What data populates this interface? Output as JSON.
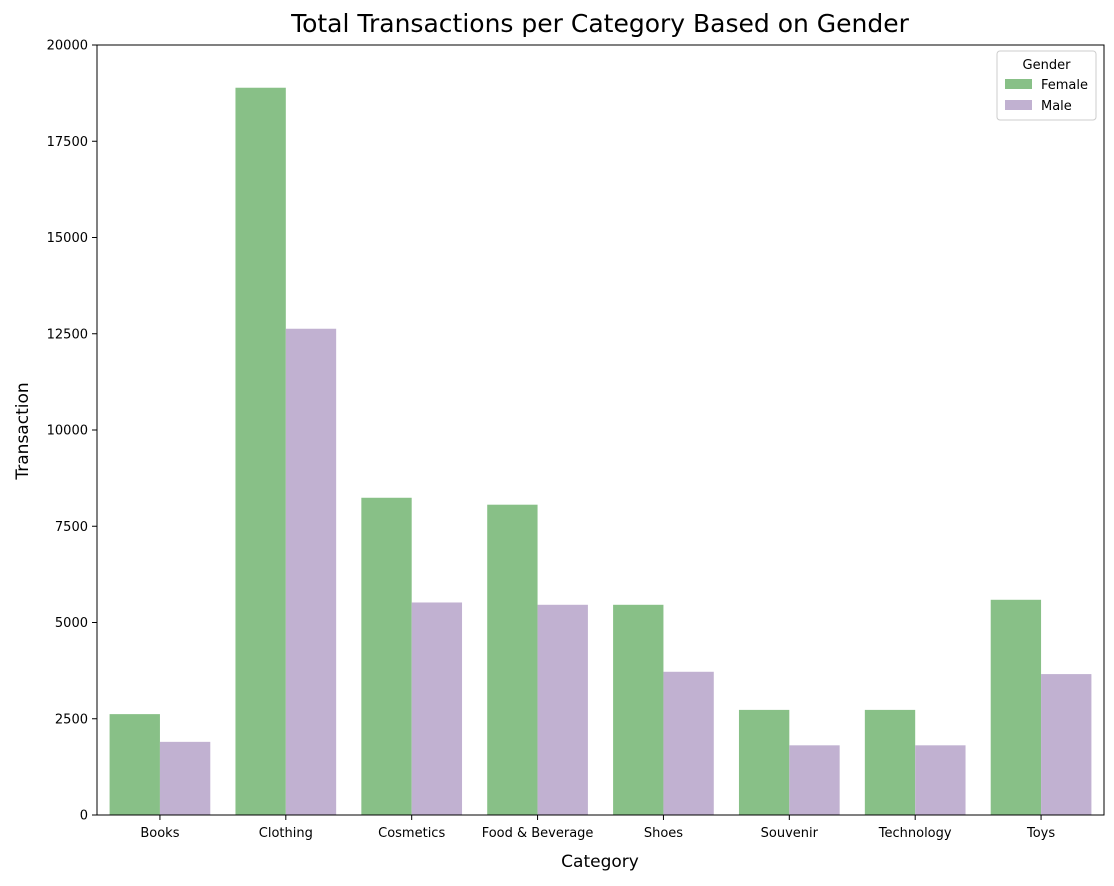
{
  "chart_data": {
    "type": "bar",
    "title": "Total Transactions per Category Based on Gender",
    "xlabel": "Category",
    "ylabel": "Transaction",
    "categories": [
      "Books",
      "Clothing",
      "Cosmetics",
      "Food & Beverage",
      "Shoes",
      "Souvenir",
      "Technology",
      "Toys"
    ],
    "series": [
      {
        "name": "Female",
        "color": "#88c087",
        "values": [
          2620,
          18890,
          8240,
          8060,
          5460,
          2730,
          2730,
          5590
        ]
      },
      {
        "name": "Male",
        "color": "#c1b1d1",
        "values": [
          1900,
          12630,
          5520,
          5460,
          3720,
          1810,
          1810,
          3660
        ]
      }
    ],
    "ylim": [
      0,
      20000
    ],
    "yticks": [
      "0",
      "2500",
      "5000",
      "7500",
      "10000",
      "12500",
      "15000",
      "17500",
      "20000"
    ],
    "legend": {
      "title": "Gender",
      "position": "top-right"
    },
    "grid": false
  }
}
